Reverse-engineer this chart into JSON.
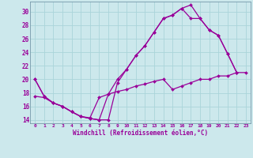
{
  "xlabel": "Windchill (Refroidissement éolien,°C)",
  "bg_color": "#cce8ec",
  "grid_color": "#aad4da",
  "line_color": "#990099",
  "xlim": [
    -0.5,
    23.5
  ],
  "ylim": [
    13.5,
    31.5
  ],
  "yticks": [
    14,
    16,
    18,
    20,
    22,
    24,
    26,
    28,
    30
  ],
  "xticks": [
    0,
    1,
    2,
    3,
    4,
    5,
    6,
    7,
    8,
    9,
    10,
    11,
    12,
    13,
    14,
    15,
    16,
    17,
    18,
    19,
    20,
    21,
    22,
    23
  ],
  "line1_x": [
    0,
    1,
    2,
    3,
    4,
    5,
    6,
    7,
    8,
    9,
    10,
    11,
    12,
    13,
    14,
    15,
    16,
    17,
    18,
    19,
    20,
    21,
    22
  ],
  "line1_y": [
    20,
    17.5,
    16.5,
    16,
    15.2,
    14.5,
    14.2,
    14.0,
    14.0,
    19.5,
    21.5,
    23.5,
    25.0,
    27.0,
    29.0,
    29.5,
    30.5,
    31.0,
    29.0,
    27.3,
    26.5,
    23.8,
    21.0
  ],
  "line2_x": [
    0,
    1,
    2,
    3,
    4,
    5,
    6,
    7,
    8,
    9,
    10,
    11,
    12,
    13,
    14,
    15,
    16,
    17,
    18,
    19,
    20,
    21,
    22
  ],
  "line2_y": [
    20,
    17.5,
    16.5,
    16,
    15.2,
    14.5,
    14.2,
    14.0,
    17.8,
    20.0,
    21.5,
    23.5,
    25.0,
    27.0,
    29.0,
    29.5,
    30.5,
    29.0,
    29.0,
    27.3,
    26.5,
    23.8,
    21.0
  ],
  "line3_x": [
    0,
    1,
    2,
    3,
    4,
    5,
    6,
    7,
    8,
    9,
    10,
    11,
    12,
    13,
    14,
    15,
    16,
    17,
    18,
    19,
    20,
    21,
    22,
    23
  ],
  "line3_y": [
    17.5,
    17.3,
    16.5,
    16.0,
    15.2,
    14.5,
    14.3,
    17.3,
    17.8,
    18.2,
    18.5,
    19.0,
    19.3,
    19.7,
    20.0,
    18.5,
    19.0,
    19.5,
    20.0,
    20.0,
    20.5,
    20.5,
    21.0,
    21.0
  ]
}
